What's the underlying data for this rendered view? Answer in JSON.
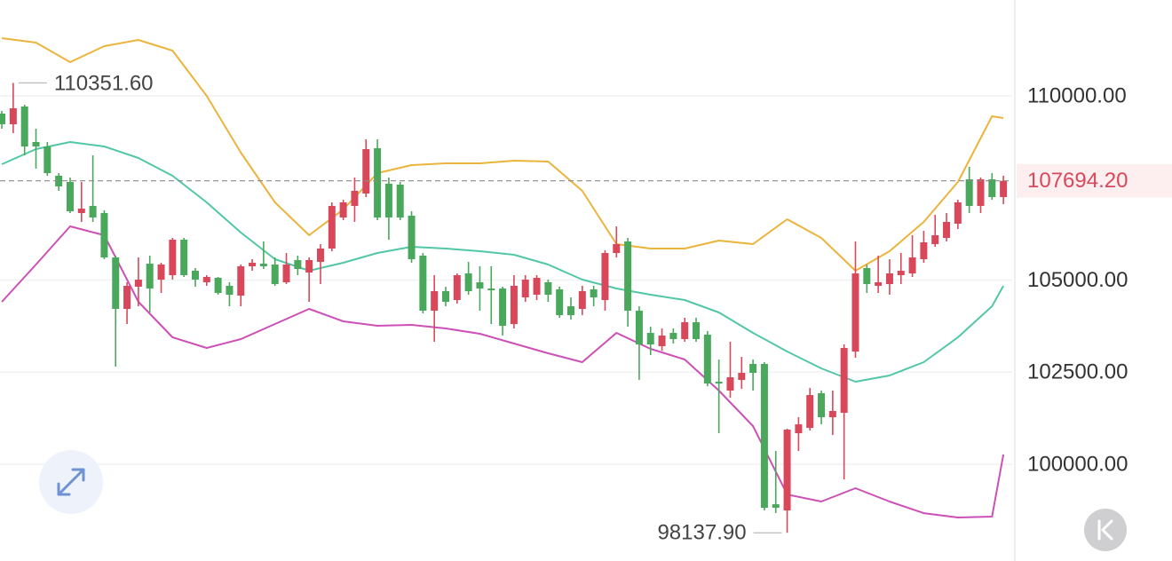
{
  "chart_data": {
    "type": "candlestick",
    "ylim": [
      97373,
      112602
    ],
    "xlim": [
      -0.16,
      88.77
    ],
    "yticks": [
      {
        "value": 100000,
        "label": "100000.00"
      },
      {
        "value": 102500,
        "label": "102500.00"
      },
      {
        "value": 105000,
        "label": "105000.00"
      },
      {
        "value": 110000,
        "label": "110000.00"
      }
    ],
    "grid": true,
    "up_color": "#d9485a",
    "down_color": "#4aa85c",
    "open": [
      109518,
      109229,
      109711,
      108747,
      108626,
      107831,
      107662,
      106819,
      107012,
      106819,
      105614,
      104216,
      104819,
      105445,
      105011,
      105132,
      106096,
      105252,
      104939,
      105060,
      104843,
      104578,
      105373,
      105445,
      105421,
      104939,
      105542,
      105204,
      105493,
      105855,
      106698,
      107012,
      107349,
      108578,
      107614,
      107590,
      106747,
      105662,
      104168,
      104698,
      104457,
      105180,
      104939,
      104770,
      104770,
      103806,
      104529,
      104602,
      104939,
      104746,
      104288,
      104216,
      104746,
      104457,
      105734,
      106048,
      104168,
      103565,
      103204,
      103565,
      103397,
      103855,
      103517,
      102240,
      101999,
      102288,
      102722,
      102722,
      98914,
      98745,
      100842,
      100987,
      101927,
      101276,
      101396,
      103059,
      105325,
      104843,
      104891,
      105132,
      105180,
      105566,
      105975,
      106144,
      106530,
      107735,
      107012,
      107735,
      107253
    ],
    "high": [
      109590,
      110351.6,
      109759,
      109108,
      108747,
      107903,
      107783,
      107662,
      108385,
      106891,
      105662,
      104939,
      105614,
      105662,
      105469,
      106144,
      106144,
      105325,
      105132,
      105084,
      104939,
      105421,
      105566,
      106048,
      105614,
      105734,
      105662,
      105614,
      105975,
      107108,
      107180,
      107783,
      108819,
      108819,
      107783,
      107662,
      106867,
      105734,
      105132,
      104819,
      105180,
      105493,
      105373,
      105373,
      104819,
      105132,
      105132,
      105132,
      105011,
      104819,
      104529,
      104843,
      104843,
      105807,
      106457,
      106144,
      104288,
      103734,
      103686,
      103686,
      103975,
      103975,
      103614,
      102842,
      103324,
      102915,
      102842,
      102770,
      100360,
      100963,
      101276,
      102071,
      101999,
      101999,
      103252,
      106048,
      105421,
      105662,
      105566,
      105734,
      106216,
      106337,
      106771,
      106819,
      107180,
      108072,
      107783,
      107903,
      107831
    ],
    "low": [
      109108,
      108988,
      108385,
      108024,
      107831,
      107421,
      106819,
      106578,
      106578,
      105566,
      102650,
      103806,
      104288,
      104120,
      104650,
      105011,
      105084,
      104819,
      104843,
      104602,
      104288,
      104288,
      105252,
      105301,
      104843,
      104891,
      105132,
      104409,
      104891,
      105783,
      106626,
      106578,
      107253,
      106626,
      106096,
      106626,
      105469,
      104096,
      103324,
      104288,
      104361,
      104602,
      104168,
      103806,
      103493,
      103686,
      104409,
      104457,
      104409,
      103975,
      103927,
      104047,
      104288,
      104168,
      105614,
      103734,
      102288,
      102963,
      103083,
      103276,
      103324,
      103324,
      102119,
      100842,
      101806,
      102047,
      101999,
      98745,
      98673,
      98137.9,
      100360,
      100914,
      101083,
      100794,
      99589,
      102891,
      104650,
      104650,
      104602,
      104891,
      105084,
      105469,
      105903,
      106048,
      106385,
      106819,
      106819,
      107180,
      107060
    ],
    "close": [
      109229,
      109663,
      108626,
      108626,
      107903,
      107542,
      106867,
      106939,
      106698,
      105614,
      104216,
      104843,
      105011,
      104770,
      105421,
      106096,
      105132,
      105011,
      105084,
      104650,
      104602,
      105373,
      105469,
      105373,
      104891,
      105421,
      105301,
      105542,
      105855,
      107012,
      107108,
      107421,
      108554,
      106698,
      106698,
      106698,
      105566,
      104168,
      104698,
      104409,
      105132,
      104698,
      104770,
      104722,
      103758,
      104843,
      105011,
      105060,
      104602,
      104047,
      104047,
      104698,
      104529,
      105734,
      105975,
      104168,
      103252,
      103252,
      103493,
      103397,
      103855,
      103397,
      102192,
      102192,
      102360,
      102481,
      102481,
      98818,
      98818,
      100939,
      101083,
      101878,
      101276,
      101445,
      103156,
      105180,
      104891,
      104939,
      105180,
      105252,
      105614,
      106024,
      106216,
      106578,
      107108,
      107012,
      107735,
      107253,
      107694.2
    ],
    "series": [
      {
        "type": "line",
        "color": "#ebb43c",
        "x": [
          0,
          3,
          6,
          9,
          12,
          15,
          18,
          21,
          24,
          27,
          30,
          33,
          36,
          39,
          42,
          45,
          48,
          51,
          54,
          57,
          60,
          63,
          66,
          69,
          72,
          75,
          78,
          81,
          84,
          87,
          88
        ],
        "values": [
          111567,
          111446,
          110916,
          111350,
          111518,
          111229,
          110000,
          108458,
          107108,
          106216,
          106915,
          107903,
          108120,
          108169,
          108169,
          108241,
          108217,
          107422,
          105975,
          105855,
          105855,
          106072,
          105975,
          106650,
          106144,
          105252,
          105783,
          106578,
          107662,
          109446,
          109398
        ]
      },
      {
        "type": "line",
        "color": "#52c7a6",
        "x": [
          0,
          3,
          6,
          9,
          12,
          15,
          18,
          21,
          24,
          27,
          30,
          33,
          36,
          39,
          42,
          45,
          48,
          51,
          54,
          57,
          60,
          63,
          66,
          69,
          72,
          75,
          78,
          81,
          84,
          87,
          88
        ],
        "values": [
          108145,
          108554,
          108747,
          108626,
          108313,
          107831,
          107108,
          106289,
          105566,
          105252,
          105469,
          105734,
          105903,
          105855,
          105783,
          105686,
          105421,
          105011,
          104770,
          104602,
          104457,
          104120,
          103565,
          103059,
          102603,
          102240,
          102409,
          102770,
          103445,
          104288,
          104843
        ]
      },
      {
        "type": "line",
        "color": "#cc50b6",
        "x": [
          0,
          3,
          6,
          9,
          12,
          15,
          18,
          21,
          24,
          27,
          30,
          33,
          36,
          39,
          42,
          45,
          48,
          51,
          54,
          57,
          60,
          63,
          66,
          69,
          72,
          75,
          78,
          81,
          84,
          87,
          88
        ],
        "values": [
          104409,
          105421,
          106457,
          106216,
          104409,
          103445,
          103156,
          103397,
          103806,
          104216,
          103879,
          103758,
          103782,
          103686,
          103542,
          103276,
          103011,
          102770,
          103565,
          103132,
          102842,
          101999,
          101035,
          99179,
          98987,
          99348,
          98987,
          98673,
          98553,
          98577,
          100264
        ]
      }
    ],
    "last_price": {
      "value": 107694.2,
      "label": "107694.20"
    },
    "annotations": [
      {
        "value": 110351.6,
        "label": "110351.60"
      },
      {
        "value": 98137.9,
        "label": "98137.90"
      }
    ]
  }
}
